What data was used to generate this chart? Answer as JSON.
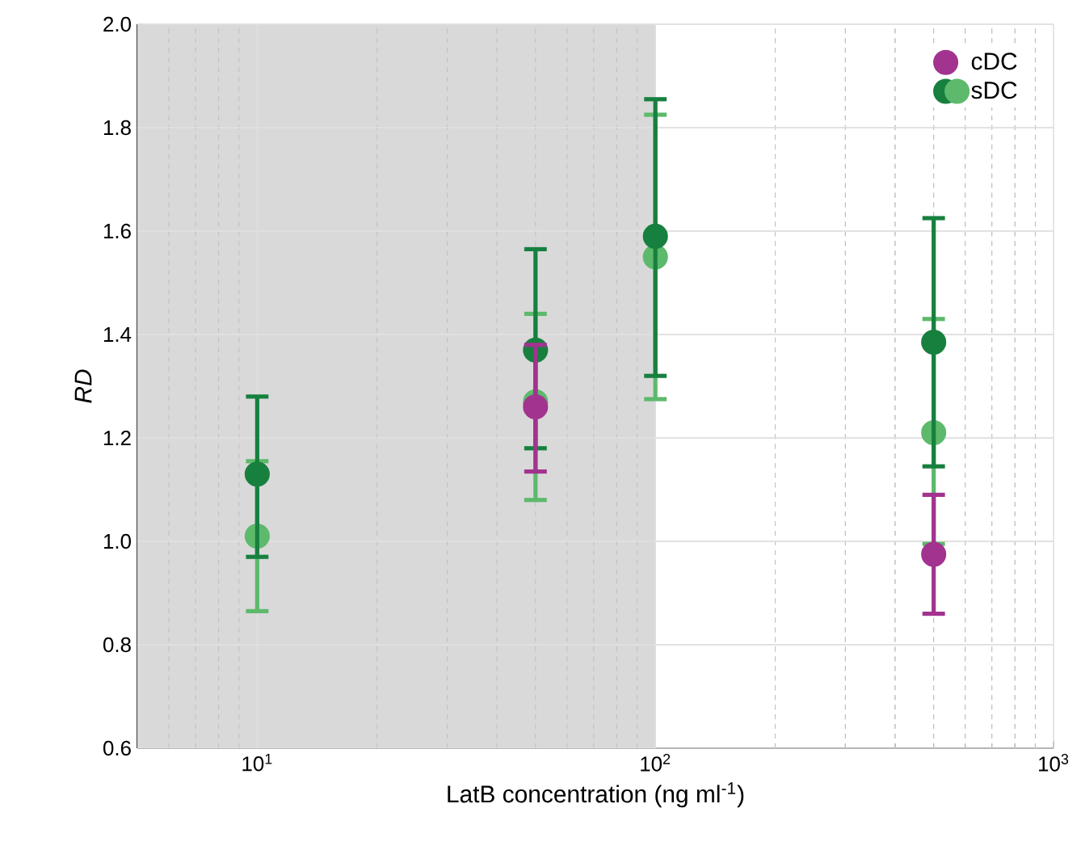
{
  "chart_data": {
    "type": "scatter",
    "xlabel": "LatB concentration (ng ml$^{-1}$)",
    "ylabel": "RD",
    "log": "x",
    "xlim": [
      5,
      1000
    ],
    "ylim": [
      0.6,
      2.0
    ],
    "xticks": [
      {
        "value": 10,
        "label": "10$^{1}$"
      },
      {
        "value": 100,
        "label": "10$^{2}$"
      },
      {
        "value": 1000,
        "label": "10$^{3}$"
      }
    ],
    "yticks": [
      {
        "value": 0.6,
        "label": "0.6"
      },
      {
        "value": 0.8,
        "label": "0.8"
      },
      {
        "value": 1.0,
        "label": "1.0"
      },
      {
        "value": 1.2,
        "label": "1.2"
      },
      {
        "value": 1.4,
        "label": "1.4"
      },
      {
        "value": 1.6,
        "label": "1.6"
      },
      {
        "value": 1.8,
        "label": "1.8"
      },
      {
        "value": 2.0,
        "label": "2.0"
      }
    ],
    "grid": true,
    "legend": "top right",
    "marker": "circle",
    "bands": [
      {
        "axis": "x",
        "from": 5,
        "to": 100,
        "color": "#d9d9d9"
      }
    ],
    "series": [
      {
        "name": "cDC",
        "color": "#a2338f",
        "x": [
          50,
          500
        ],
        "values": [
          1.26,
          0.975
        ],
        "errors": [
          [
            1.135,
            1.38
          ],
          [
            0.86,
            1.09
          ]
        ]
      },
      {
        "name": "sDC",
        "color": "#17803f",
        "x": [
          10,
          50,
          100,
          500
        ],
        "values": [
          1.13,
          1.37,
          1.59,
          1.385
        ],
        "errors": [
          [
            0.97,
            1.28
          ],
          [
            1.18,
            1.565
          ],
          [
            1.32,
            1.855
          ],
          [
            1.145,
            1.625
          ]
        ]
      },
      {
        "color": "#5db96b",
        "x": [
          10,
          50,
          100,
          500
        ],
        "values": [
          1.01,
          1.27,
          1.55,
          1.21
        ],
        "errors": [
          [
            0.865,
            1.155
          ],
          [
            1.08,
            1.44
          ],
          [
            1.275,
            1.825
          ],
          [
            0.995,
            1.43
          ]
        ]
      }
    ]
  }
}
